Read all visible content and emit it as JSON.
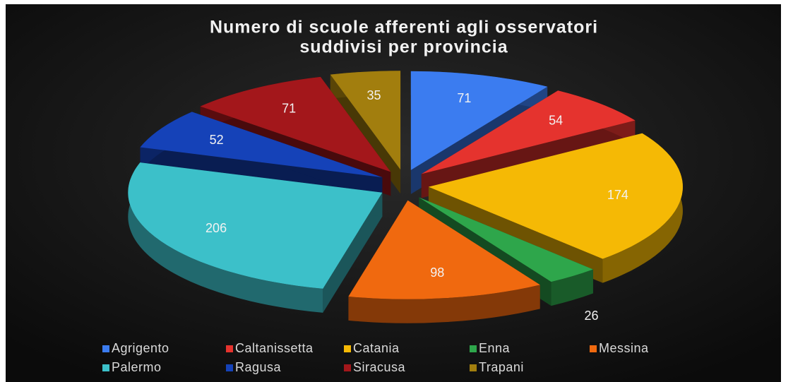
{
  "chart_data": {
    "type": "pie",
    "title": [
      "Numero di scuole afferenti agli osservatori",
      "suddivisi per provincia"
    ],
    "categories": [
      "Agrigento",
      "Caltanissetta",
      "Catania",
      "Enna",
      "Messina",
      "Palermo",
      "Ragusa",
      "Siracusa",
      "Trapani"
    ],
    "values": [
      71,
      54,
      174,
      26,
      98,
      206,
      52,
      71,
      35
    ],
    "colors": [
      "#3b7cf0",
      "#e5332e",
      "#f5b905",
      "#2ea64b",
      "#f0690f",
      "#3cc0c9",
      "#1542b8",
      "#a3171b",
      "#a27e0e"
    ],
    "legend": "bottom"
  }
}
